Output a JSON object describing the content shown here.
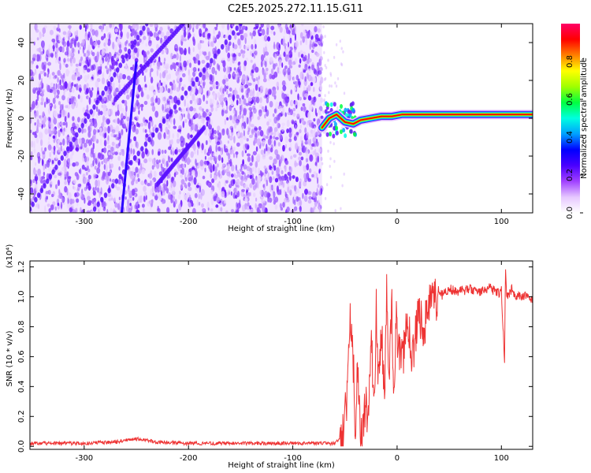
{
  "title": "C2E5.2025.272.11.15.G11",
  "chart_data": [
    {
      "type": "heatmap",
      "name": "spectrogram",
      "xlabel": "Height of straight line (km)",
      "ylabel": "Frequency (Hz)",
      "xlim": [
        -352,
        130
      ],
      "ylim": [
        -50,
        50
      ],
      "xticks": [
        -300,
        -200,
        -100,
        0,
        100
      ],
      "yticks": [
        -40,
        -20,
        0,
        20,
        40
      ],
      "colorbar": {
        "label": "Normalized spectral amplitude",
        "range": [
          0,
          1
        ],
        "ticks": [
          "0.0",
          "0.2",
          "0.4",
          "0.6",
          "0.8"
        ],
        "tick_values": [
          0,
          0.2,
          0.4,
          0.6,
          0.8
        ],
        "colors": [
          "#ffffff",
          "#e6c8ff",
          "#a040ff",
          "#4a00ff",
          "#0000ff",
          "#00a0ff",
          "#00ffe0",
          "#00ff40",
          "#a0ff00",
          "#ffff00",
          "#ff8000",
          "#ff0000",
          "#ff0066"
        ]
      },
      "noise_region": {
        "x_range": [
          -352,
          -72
        ],
        "y_range": [
          -50,
          50
        ]
      },
      "streaks": [
        {
          "x_start": -352,
          "y_start": -48,
          "x_end": -240,
          "y_end": 50
        },
        {
          "x_start": -290,
          "y_start": -48,
          "x_end": -150,
          "y_end": 50
        },
        {
          "x_start": -230,
          "y_start": -35,
          "x_end": -185,
          "y_end": -5
        },
        {
          "x_start": -270,
          "y_start": 10,
          "x_end": -205,
          "y_end": 50
        }
      ],
      "bright_line": {
        "x_start": -264,
        "y_start": -50,
        "x_end": -250,
        "y_end": 30
      },
      "signal_ridge": {
        "x": [
          -72,
          -65,
          -58,
          -50,
          -42,
          -35,
          -25,
          -15,
          -5,
          5,
          15,
          30,
          50,
          70,
          90,
          110,
          130
        ],
        "freq": [
          -5,
          0,
          2,
          -2,
          -3,
          -1,
          0,
          1,
          1,
          2,
          2,
          2,
          2,
          2,
          2,
          2,
          2
        ]
      }
    },
    {
      "type": "line",
      "name": "snr",
      "xlabel": "Height of straight line (km)",
      "ylabel": "SNR (10 * v/v)",
      "scale_label": "(x10⁴)",
      "xlim": [
        -352,
        130
      ],
      "ylim": [
        -0.02,
        1.24
      ],
      "xticks": [
        -300,
        -200,
        -100,
        0,
        100
      ],
      "yticks": [
        0.0,
        0.2,
        0.4,
        0.6,
        0.8,
        1.0,
        1.2
      ],
      "color": "#ee3333",
      "series": [
        {
          "name": "SNR",
          "x": [
            -352,
            -300,
            -270,
            -250,
            -230,
            -200,
            -150,
            -100,
            -60,
            -52,
            -48,
            -45,
            -42,
            -40,
            -38,
            -35,
            -32,
            -30,
            -28,
            -25,
            -22,
            -20,
            -18,
            -15,
            -12,
            -10,
            -8,
            -5,
            -3,
            -1,
            0,
            5,
            10,
            15,
            20,
            25,
            30,
            35,
            40,
            50,
            60,
            70,
            80,
            90,
            95,
            100,
            103,
            104,
            105,
            108,
            110,
            115,
            120,
            125,
            130
          ],
          "y": [
            0.02,
            0.02,
            0.03,
            0.05,
            0.03,
            0.02,
            0.02,
            0.02,
            0.02,
            0.06,
            0.3,
            0.95,
            0.55,
            0.12,
            0.55,
            0.15,
            0.08,
            0.4,
            0.1,
            0.75,
            0.3,
            0.9,
            0.4,
            0.8,
            0.35,
            1.0,
            0.5,
            0.9,
            0.35,
            0.9,
            0.75,
            0.55,
            0.85,
            0.6,
            0.9,
            0.8,
            0.92,
            0.95,
            1.0,
            1.05,
            1.04,
            1.05,
            1.03,
            1.06,
            1.02,
            1.04,
            0.55,
            1.2,
            1.0,
            1.02,
            1.05,
            1.0,
            1.01,
            0.99,
            0.97
          ]
        }
      ]
    }
  ]
}
